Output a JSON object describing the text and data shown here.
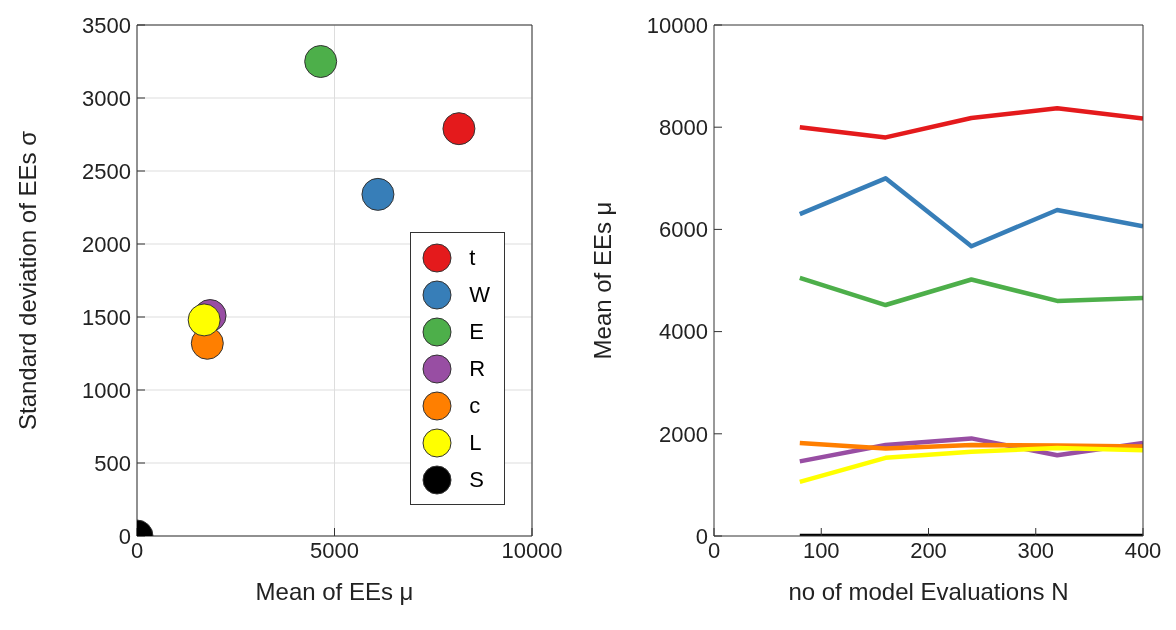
{
  "chart_data": [
    {
      "type": "scatter",
      "xlabel": "Mean of EEs μ",
      "ylabel": "Standard deviation of EEs σ",
      "xlim": [
        0,
        10000
      ],
      "xticks": [
        0,
        5000,
        10000
      ],
      "ylim": [
        0,
        3500
      ],
      "yticks": [
        0,
        500,
        1000,
        1500,
        2000,
        2500,
        3000,
        3500
      ],
      "grid": true,
      "legend": "bottom right",
      "marker": "circle",
      "series": [
        {
          "name": "t",
          "color": "#e41a1c",
          "x": [
            8150
          ],
          "values": [
            2790
          ]
        },
        {
          "name": "W",
          "color": "#377eb8",
          "x": [
            6100
          ],
          "values": [
            2340
          ]
        },
        {
          "name": "E",
          "color": "#4daf4a",
          "x": [
            4650
          ],
          "values": [
            3250
          ]
        },
        {
          "name": "R",
          "color": "#984ea3",
          "x": [
            1850
          ],
          "values": [
            1510
          ]
        },
        {
          "name": "c",
          "color": "#ff7f00",
          "x": [
            1780
          ],
          "values": [
            1320
          ]
        },
        {
          "name": "L",
          "color": "#ffff00",
          "x": [
            1700
          ],
          "values": [
            1480
          ]
        },
        {
          "name": "S",
          "color": "#000000",
          "x": [
            0
          ],
          "values": [
            0
          ]
        }
      ]
    },
    {
      "type": "line",
      "xlabel": "no of model Evaluations N",
      "ylabel": "Mean of EEs μ",
      "xlim": [
        0,
        400
      ],
      "xticks": [
        0,
        100,
        200,
        300,
        400
      ],
      "ylim": [
        0,
        10000
      ],
      "yticks": [
        0,
        2000,
        4000,
        6000,
        8000,
        10000
      ],
      "marker": "none",
      "line_style": "solid",
      "x": [
        80,
        160,
        240,
        320,
        400
      ],
      "series": [
        {
          "color": "#e41a1c",
          "values": [
            8000,
            7800,
            8180,
            8370,
            8170
          ]
        },
        {
          "color": "#377eb8",
          "values": [
            6300,
            7000,
            5670,
            6380,
            6060
          ]
        },
        {
          "color": "#4daf4a",
          "values": [
            5050,
            4520,
            5020,
            4600,
            4660
          ]
        },
        {
          "color": "#984ea3",
          "values": [
            1460,
            1780,
            1910,
            1580,
            1820
          ]
        },
        {
          "color": "#ff7f00",
          "values": [
            1820,
            1710,
            1780,
            1770,
            1750
          ]
        },
        {
          "color": "#ffff00",
          "values": [
            1060,
            1530,
            1650,
            1720,
            1680
          ]
        },
        {
          "color": "#000000",
          "values": [
            0,
            0,
            0,
            0,
            0
          ]
        }
      ]
    }
  ]
}
